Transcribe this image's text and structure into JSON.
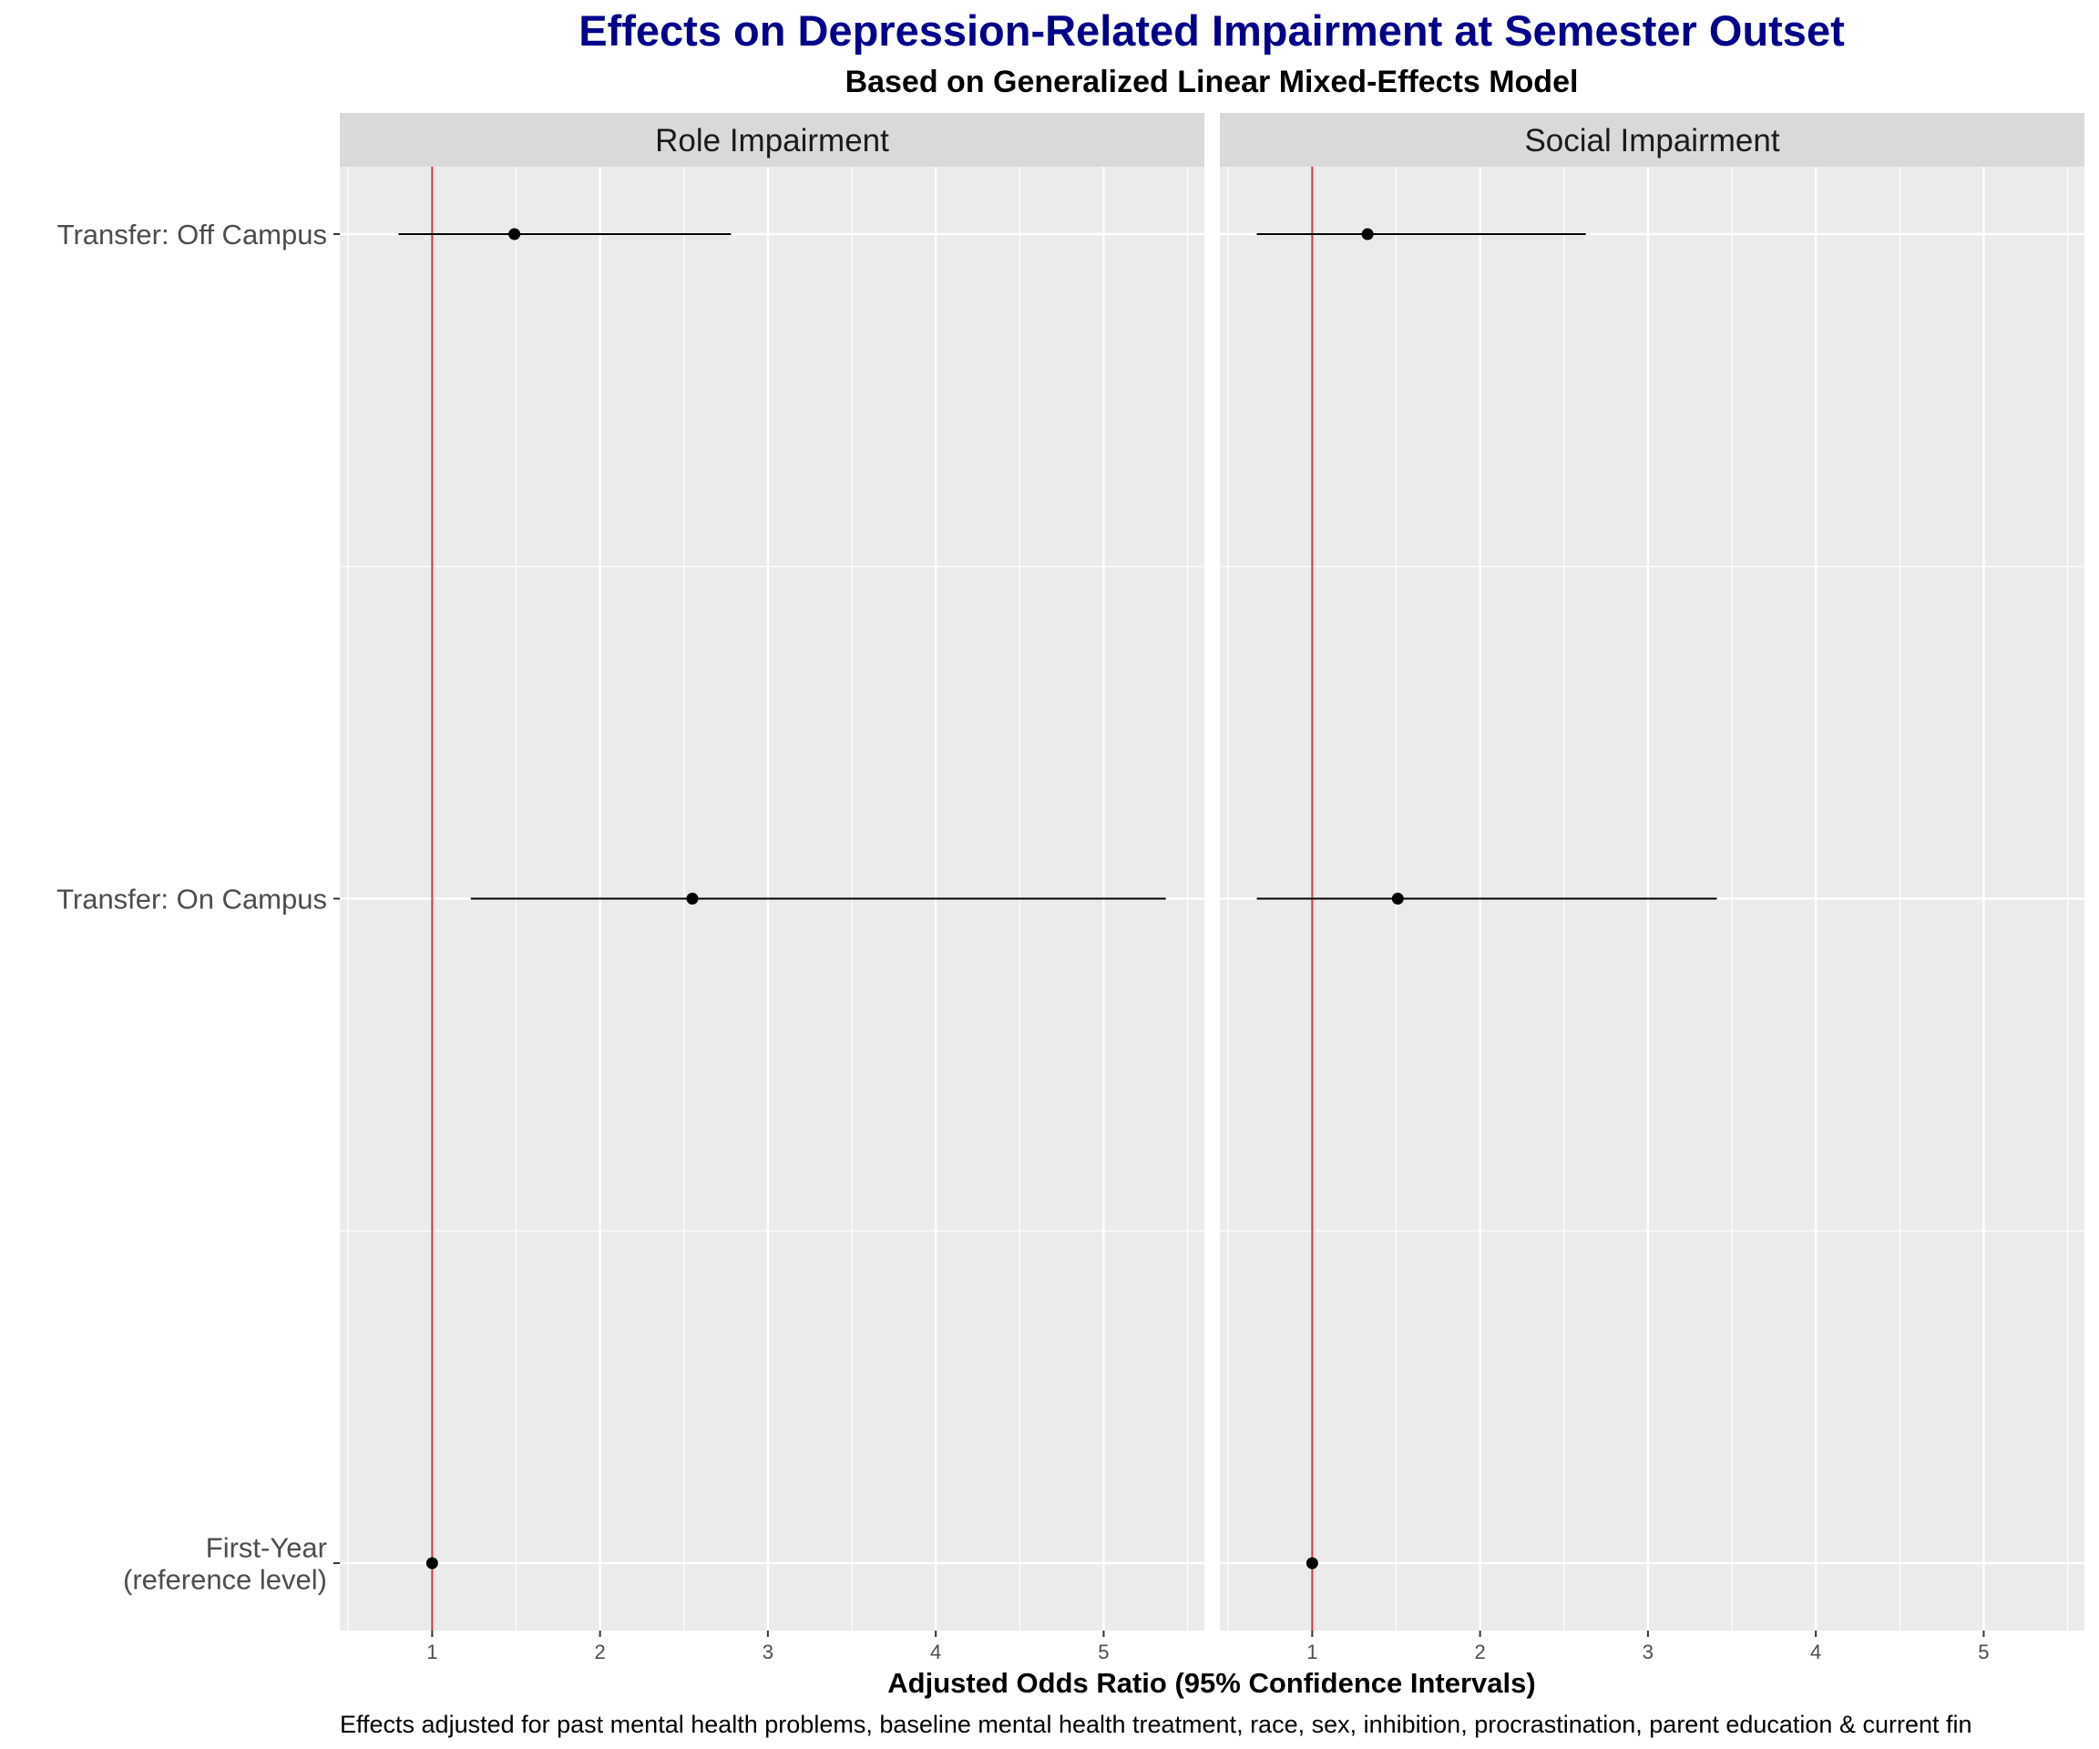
{
  "chart_data": {
    "type": "scatter",
    "title": "Effects on Depression-Related Impairment at Semester Outset",
    "subtitle": "Based on Generalized Linear Mixed-Effects Model",
    "xlabel": "Adjusted Odds Ratio (95% Confidence Intervals)",
    "caption": "Effects adjusted for past mental health problems, baseline mental health treatment, race, sex, inhibition, procrastination, parent education & current fin",
    "xlim": [
      0.45,
      5.6
    ],
    "x_ticks": [
      "1",
      "2",
      "3",
      "4",
      "5"
    ],
    "reference_line": {
      "x": 1,
      "color": "#E0303A"
    },
    "categories": [
      "Transfer: Off Campus",
      "Transfer: On Campus",
      "First-Year\n(reference level)"
    ],
    "panels": [
      {
        "name": "Role Impairment",
        "points": [
          {
            "category": "Transfer: Off Campus",
            "estimate": 1.49,
            "lower": 0.8,
            "upper": 2.78
          },
          {
            "category": "Transfer: On Campus",
            "estimate": 2.55,
            "lower": 1.23,
            "upper": 5.37
          },
          {
            "category": "First-Year\n(reference level)",
            "estimate": 1.0,
            "lower": 1.0,
            "upper": 1.0
          }
        ]
      },
      {
        "name": "Social Impairment",
        "points": [
          {
            "category": "Transfer: Off Campus",
            "estimate": 1.33,
            "lower": 0.67,
            "upper": 2.63
          },
          {
            "category": "Transfer: On Campus",
            "estimate": 1.51,
            "lower": 0.67,
            "upper": 3.41
          },
          {
            "category": "First-Year\n(reference level)",
            "estimate": 1.0,
            "lower": 1.0,
            "upper": 1.0
          }
        ]
      }
    ],
    "colors": {
      "panel_bg": "#EBEBEB",
      "strip_bg": "#D9D9D9",
      "grid": "#FFFFFF",
      "point": "#000000"
    }
  }
}
